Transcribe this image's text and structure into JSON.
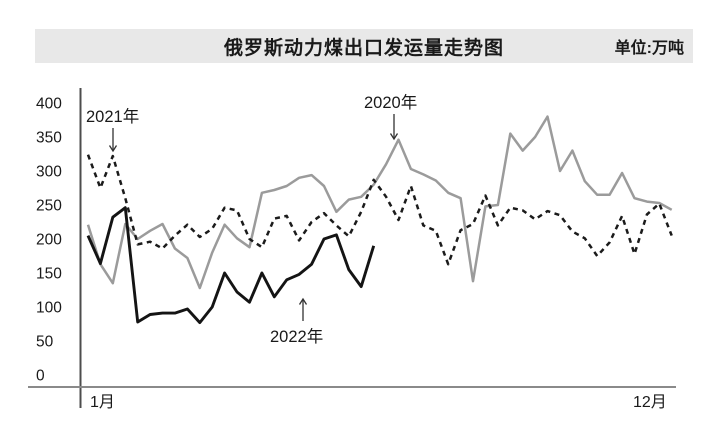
{
  "header": {
    "title": "俄罗斯动力煤出口发运量走势图",
    "unit_label": "单位:万吨"
  },
  "colors": {
    "title_bar_bg": "#e8e8e8",
    "y_axis_line": "#4d4d4d",
    "x_axis_line": "#8a8a8a",
    "text": "#1a1a1a",
    "series_2020": "#9b9b9b",
    "series_2021": "#1b1b1b",
    "series_2022": "#141414"
  },
  "chart_data": {
    "type": "line",
    "title": "俄罗斯动力煤出口发运量走势图",
    "unit": "万吨",
    "grid": false,
    "legend_position": "inline-annotations",
    "x_axis": {
      "start_label": "1月",
      "end_label": "12月",
      "range": "1月-12月",
      "interval": "weekly"
    },
    "y_axis": {
      "min": 0,
      "max": 400,
      "tick_interval": 50,
      "ticks": [
        400,
        350,
        300,
        250,
        200,
        150,
        100,
        50,
        0
      ]
    },
    "series": [
      {
        "name": "2020年",
        "style": "solid",
        "color": "#9b9b9b",
        "values": [
          221,
          163,
          135,
          222,
          200,
          212,
          222,
          186,
          172,
          128,
          180,
          221,
          201,
          188,
          268,
          272,
          278,
          290,
          294,
          278,
          240,
          258,
          262,
          280,
          310,
          346,
          303,
          295,
          286,
          268,
          260,
          138,
          248,
          250,
          355,
          330,
          350,
          380,
          300,
          330,
          285,
          265,
          265,
          297,
          260,
          255,
          253,
          243
        ]
      },
      {
        "name": "2021年",
        "style": "dashed",
        "color": "#1b1b1b",
        "values": [
          324,
          275,
          322,
          260,
          192,
          196,
          186,
          205,
          221,
          203,
          215,
          246,
          242,
          200,
          188,
          230,
          234,
          198,
          225,
          238,
          220,
          204,
          240,
          287,
          262,
          228,
          278,
          220,
          212,
          163,
          213,
          222,
          264,
          220,
          246,
          242,
          229,
          241,
          235,
          211,
          201,
          175,
          195,
          234,
          178,
          236,
          252,
          205
        ]
      },
      {
        "name": "2022年",
        "style": "solid",
        "color": "#141414",
        "values": [
          205,
          164,
          232,
          246,
          78,
          89,
          91,
          91,
          97,
          77,
          100,
          150,
          122,
          107,
          150,
          115,
          140,
          148,
          163,
          200,
          206,
          155,
          130,
          190
        ]
      }
    ],
    "annotations": [
      {
        "series": "2021年",
        "label": "2021年",
        "arrow": "down"
      },
      {
        "series": "2020年",
        "label": "2020年",
        "arrow": "down"
      },
      {
        "series": "2022年",
        "label": "2022年",
        "arrow": "up"
      }
    ]
  }
}
